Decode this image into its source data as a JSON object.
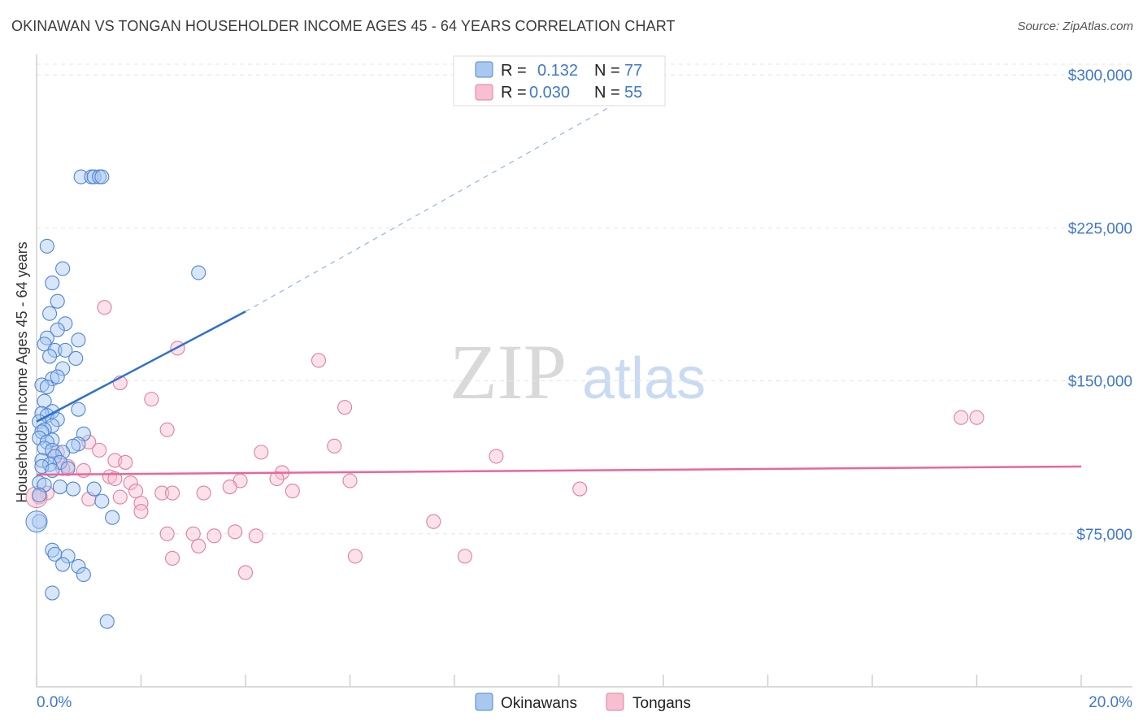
{
  "header": {
    "title": "OKINAWAN VS TONGAN HOUSEHOLDER INCOME AGES 45 - 64 YEARS CORRELATION CHART",
    "source": "Source: ZipAtlas.com"
  },
  "watermark": {
    "zip": "ZIP",
    "atlas": "atlas"
  },
  "legend": {
    "rows": [
      {
        "r_label": "R =",
        "r_value": "0.132",
        "n_label": "N =",
        "n_value": "77"
      },
      {
        "r_label": "R =",
        "r_value": "0.030",
        "n_label": "N =",
        "n_value": "55"
      }
    ]
  },
  "colors": {
    "okinawan_fill": "#a9c8f0",
    "okinawan_stroke": "#4f86d6",
    "okinawan_line": "#2f6fd0",
    "tongan_fill": "#f7bfd0",
    "tongan_stroke": "#e0809e",
    "tongan_line": "#e8679a",
    "accent_text": "#3f78c9"
  },
  "chart_data": {
    "type": "scatter",
    "title": "OKINAWAN VS TONGAN HOUSEHOLDER INCOME AGES 45 - 64 YEARS CORRELATION CHART",
    "xlabel": "",
    "ylabel": "Householder Income Ages 45 - 64 years",
    "xlim": [
      0,
      20
    ],
    "ylim": [
      0,
      310000
    ],
    "x_tick_labels": [
      "0.0%",
      "20.0%"
    ],
    "y_ticks": [
      75000,
      150000,
      225000,
      300000
    ],
    "y_tick_labels": [
      "$75,000",
      "$150,000",
      "$225,000",
      "$300,000"
    ],
    "grid": true,
    "series": [
      {
        "name": "Okinawans",
        "r": 0.132,
        "n": 77,
        "trend": {
          "x0": 0.0,
          "y0": 130000,
          "x1": 4.0,
          "y1": 184000,
          "dashed_to_x": 12.0,
          "dashed_to_y": 299000
        },
        "points": [
          [
            0.85,
            250000
          ],
          [
            1.05,
            250000
          ],
          [
            1.1,
            250000
          ],
          [
            1.2,
            250000
          ],
          [
            1.25,
            250000
          ],
          [
            0.2,
            216000
          ],
          [
            0.5,
            205000
          ],
          [
            3.1,
            203000
          ],
          [
            0.3,
            198000
          ],
          [
            0.4,
            189000
          ],
          [
            0.25,
            183000
          ],
          [
            0.55,
            178000
          ],
          [
            0.4,
            175000
          ],
          [
            0.2,
            171000
          ],
          [
            0.8,
            170000
          ],
          [
            0.15,
            168000
          ],
          [
            0.35,
            165000
          ],
          [
            0.55,
            165000
          ],
          [
            0.25,
            162000
          ],
          [
            0.75,
            161000
          ],
          [
            0.5,
            156000
          ],
          [
            0.3,
            151000
          ],
          [
            0.4,
            152000
          ],
          [
            0.1,
            148000
          ],
          [
            0.2,
            147000
          ],
          [
            0.15,
            140000
          ],
          [
            0.8,
            136000
          ],
          [
            0.3,
            135000
          ],
          [
            0.1,
            134000
          ],
          [
            0.2,
            133000
          ],
          [
            0.4,
            131000
          ],
          [
            0.05,
            130000
          ],
          [
            0.3,
            128000
          ],
          [
            0.15,
            126000
          ],
          [
            0.1,
            125000
          ],
          [
            0.9,
            124000
          ],
          [
            0.05,
            122000
          ],
          [
            0.3,
            121000
          ],
          [
            0.2,
            120000
          ],
          [
            0.8,
            119000
          ],
          [
            0.7,
            118000
          ],
          [
            0.15,
            117000
          ],
          [
            0.3,
            116000
          ],
          [
            0.5,
            115000
          ],
          [
            0.35,
            113000
          ],
          [
            0.1,
            111000
          ],
          [
            0.45,
            110000
          ],
          [
            0.25,
            109000
          ],
          [
            0.1,
            108000
          ],
          [
            0.6,
            107000
          ],
          [
            0.3,
            106000
          ],
          [
            0.05,
            100000
          ],
          [
            0.15,
            99000
          ],
          [
            0.45,
            98000
          ],
          [
            0.7,
            97000
          ],
          [
            1.1,
            97000
          ],
          [
            0.05,
            94000
          ],
          [
            1.25,
            91000
          ],
          [
            1.45,
            83000
          ],
          [
            0.05,
            81000
          ],
          [
            0.3,
            67000
          ],
          [
            0.35,
            65000
          ],
          [
            0.6,
            64000
          ],
          [
            0.5,
            60000
          ],
          [
            0.8,
            59000
          ],
          [
            0.9,
            55000
          ],
          [
            0.3,
            46000
          ],
          [
            1.35,
            32000
          ]
        ]
      },
      {
        "name": "Tongans",
        "r": 0.03,
        "n": 55,
        "trend": {
          "x0": 0.0,
          "y0": 104000,
          "x1": 20.0,
          "y1": 108000
        },
        "points": [
          [
            1.3,
            186000
          ],
          [
            2.7,
            166000
          ],
          [
            5.4,
            160000
          ],
          [
            1.6,
            149000
          ],
          [
            2.2,
            141000
          ],
          [
            5.9,
            137000
          ],
          [
            17.7,
            132000
          ],
          [
            18.0,
            132000
          ],
          [
            2.5,
            126000
          ],
          [
            1.0,
            120000
          ],
          [
            1.2,
            116000
          ],
          [
            4.3,
            115000
          ],
          [
            5.7,
            118000
          ],
          [
            8.8,
            113000
          ],
          [
            0.4,
            115000
          ],
          [
            1.5,
            111000
          ],
          [
            1.7,
            110000
          ],
          [
            0.6,
            108000
          ],
          [
            0.5,
            107000
          ],
          [
            0.9,
            106000
          ],
          [
            4.7,
            105000
          ],
          [
            1.4,
            103000
          ],
          [
            1.5,
            102000
          ],
          [
            4.6,
            102000
          ],
          [
            3.9,
            101000
          ],
          [
            6.0,
            101000
          ],
          [
            1.8,
            100000
          ],
          [
            3.7,
            98000
          ],
          [
            10.4,
            97000
          ],
          [
            4.9,
            96000
          ],
          [
            2.4,
            95000
          ],
          [
            2.6,
            95000
          ],
          [
            1.9,
            96000
          ],
          [
            3.2,
            95000
          ],
          [
            0.2,
            95000
          ],
          [
            1.0,
            92000
          ],
          [
            1.6,
            93000
          ],
          [
            2.0,
            90000
          ],
          [
            0.05,
            93000
          ],
          [
            2.0,
            86000
          ],
          [
            7.6,
            81000
          ],
          [
            3.8,
            76000
          ],
          [
            2.5,
            75000
          ],
          [
            3.0,
            75000
          ],
          [
            4.2,
            74000
          ],
          [
            3.4,
            74000
          ],
          [
            3.1,
            69000
          ],
          [
            2.6,
            63000
          ],
          [
            6.1,
            64000
          ],
          [
            8.2,
            64000
          ],
          [
            4.0,
            56000
          ]
        ]
      }
    ]
  },
  "bottom_legend": {
    "items": [
      "Okinawans",
      "Tongans"
    ]
  }
}
